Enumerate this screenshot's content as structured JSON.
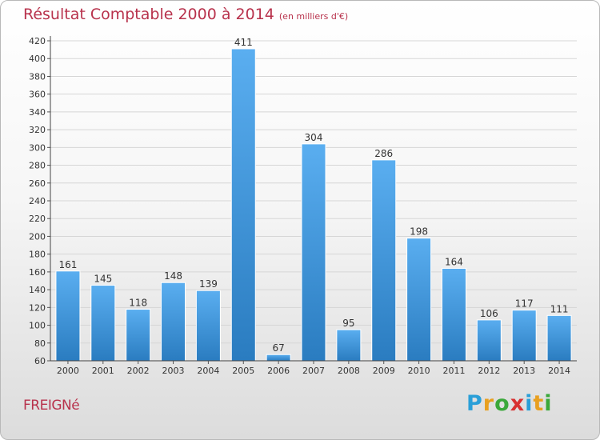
{
  "chart_data": {
    "type": "bar",
    "title": "Résultat Comptable 2000 à 2014",
    "subtitle": "(en milliers d'€)",
    "categories": [
      "2000",
      "2001",
      "2002",
      "2003",
      "2004",
      "2005",
      "2006",
      "2007",
      "2008",
      "2009",
      "2010",
      "2011",
      "2012",
      "2013",
      "2014"
    ],
    "values": [
      161,
      145,
      118,
      148,
      139,
      411,
      67,
      304,
      95,
      286,
      198,
      164,
      106,
      117,
      111
    ],
    "ylim": [
      60,
      420
    ],
    "yticks": [
      60,
      80,
      100,
      120,
      140,
      160,
      180,
      200,
      220,
      240,
      260,
      280,
      300,
      320,
      340,
      360,
      380,
      400,
      420
    ],
    "grid": true,
    "xlabel": "",
    "ylabel": ""
  },
  "commune": "FREIGNé",
  "logo": {
    "letters": [
      "P",
      "r",
      "o",
      "x",
      "i",
      "t",
      "i"
    ],
    "colors": [
      "#2a9fd8",
      "#e8a020",
      "#3aa83a",
      "#d83030",
      "#2a9fd8",
      "#e8a020",
      "#3aa83a"
    ]
  },
  "colors": {
    "title": "#b8324c",
    "bar_light": "#5aaef0",
    "bar_dark": "#2a7cc0"
  }
}
